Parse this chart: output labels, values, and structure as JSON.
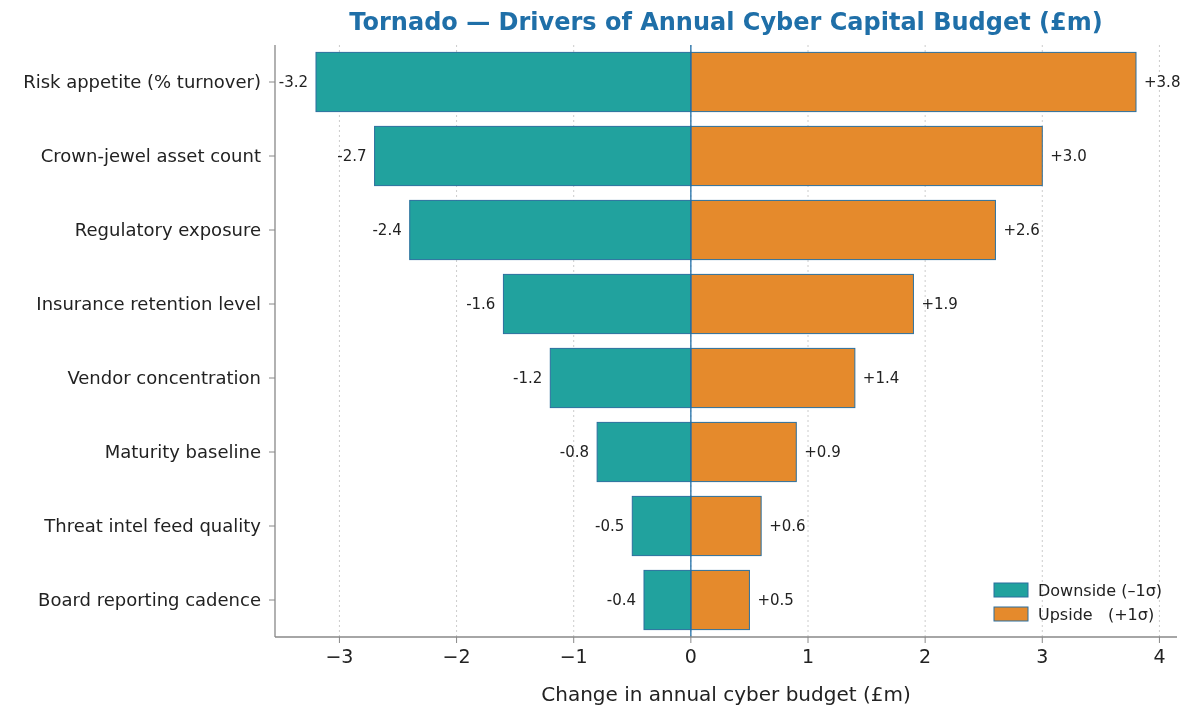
{
  "chart_data": {
    "type": "bar",
    "orientation": "horizontal",
    "stacked": true,
    "title": "Tornado — Drivers of Annual Cyber Capital Budget (£m)",
    "xlabel": "Change in annual cyber budget (£m)",
    "categories": [
      "Risk appetite (% turnover)",
      "Crown-jewel asset count",
      "Regulatory exposure",
      "Insurance retention level",
      "Vendor concentration",
      "Maturity baseline",
      "Threat intel feed quality",
      "Board reporting cadence"
    ],
    "series": [
      {
        "name": "Downside (–1σ)",
        "color": "#21a29e",
        "values": [
          -3.2,
          -2.7,
          -2.4,
          -1.6,
          -1.2,
          -0.8,
          -0.5,
          -0.4
        ],
        "value_labels": [
          "-3.2",
          "-2.7",
          "-2.4",
          "-1.6",
          "-1.2",
          "-0.8",
          "-0.5",
          "-0.4"
        ]
      },
      {
        "name": "Upside   (+1σ)",
        "color": "#e58a2c",
        "values": [
          3.8,
          3.0,
          2.6,
          1.9,
          1.4,
          0.9,
          0.6,
          0.5
        ],
        "value_labels": [
          "+3.8",
          "+3.0",
          "+2.6",
          "+1.9",
          "+1.4",
          "+0.9",
          "+0.6",
          "+0.5"
        ]
      }
    ],
    "xlim": [
      -3.55,
      4.15
    ],
    "xticks": [
      {
        "value": -3,
        "label": "−3"
      },
      {
        "value": -2,
        "label": "−2"
      },
      {
        "value": -1,
        "label": "−1"
      },
      0,
      1,
      2,
      3,
      4
    ],
    "ref_lines": [
      {
        "axis": "x",
        "value": 0,
        "color": "#1f6fa8"
      }
    ],
    "grid": "x",
    "legend": "bottom right"
  }
}
